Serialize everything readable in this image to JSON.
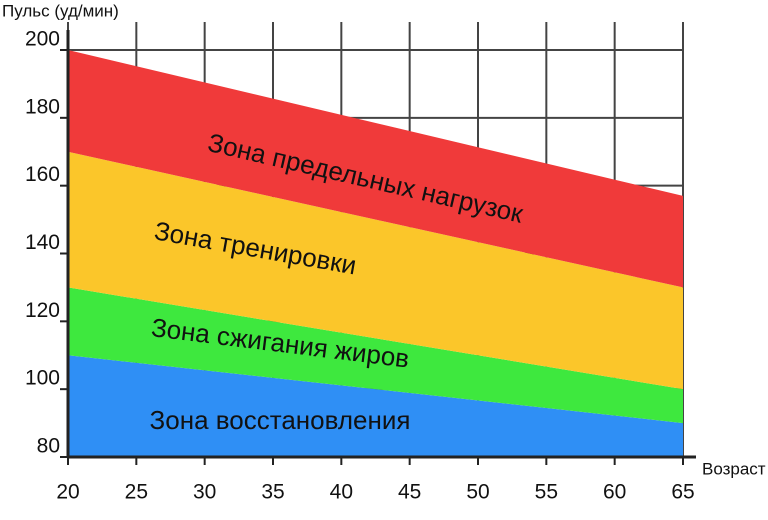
{
  "chart_data": {
    "type": "area",
    "y_label": "Пульс (уд/мин)",
    "x_label": "Возраст",
    "x": [
      20,
      65
    ],
    "series": [
      {
        "name": "Зона восстановления",
        "color": "#2f8ff5",
        "values": [
          110,
          90
        ]
      },
      {
        "name": "Зона сжигания жиров",
        "color": "#3ee83e",
        "values": [
          130,
          100
        ]
      },
      {
        "name": "Зона тренировки",
        "color": "#fbc62a",
        "values": [
          170,
          130
        ]
      },
      {
        "name": "Зона предельных нагрузок",
        "color": "#f03a3a",
        "values": [
          200,
          157
        ]
      }
    ],
    "xlim": [
      20,
      65
    ],
    "xticks": [
      20,
      25,
      30,
      35,
      40,
      45,
      50,
      55,
      60,
      65
    ],
    "ylim": [
      80,
      200
    ],
    "yticks": [
      80,
      100,
      120,
      140,
      160,
      180,
      200
    ],
    "grid": true
  }
}
